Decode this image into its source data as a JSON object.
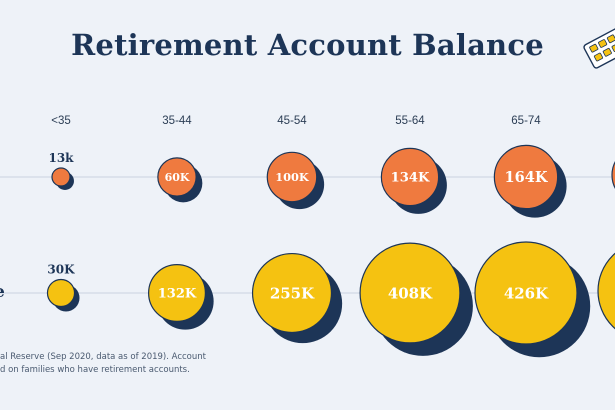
{
  "title": "Retirement Account Balance",
  "row_label_partial": "e",
  "footnote": [
    "al Reserve (Sep 2020, data as of 2019). Account",
    "d on families who have retirement accounts."
  ],
  "colors": {
    "background": "#eef2f8",
    "title": "#1d3557",
    "orange": "#ef7a3f",
    "yellow": "#f5c211",
    "shadow": "#1d3557",
    "baseline": "#c9d2df"
  },
  "chart_data": {
    "type": "bubble",
    "title": "Retirement Account Balance",
    "categories": [
      "<35",
      "35-44",
      "45-54",
      "55-64",
      "65-74"
    ],
    "series": [
      {
        "color": "orange",
        "labels": [
          "13k",
          "60K",
          "100K",
          "134K",
          "164K"
        ],
        "values": [
          13,
          60,
          100,
          134,
          164
        ]
      },
      {
        "color": "yellow",
        "labels": [
          "30K",
          "132K",
          "255K",
          "408K",
          "426K"
        ],
        "values": [
          30,
          132,
          255,
          408,
          426
        ]
      }
    ],
    "units": "thousands of dollars"
  }
}
